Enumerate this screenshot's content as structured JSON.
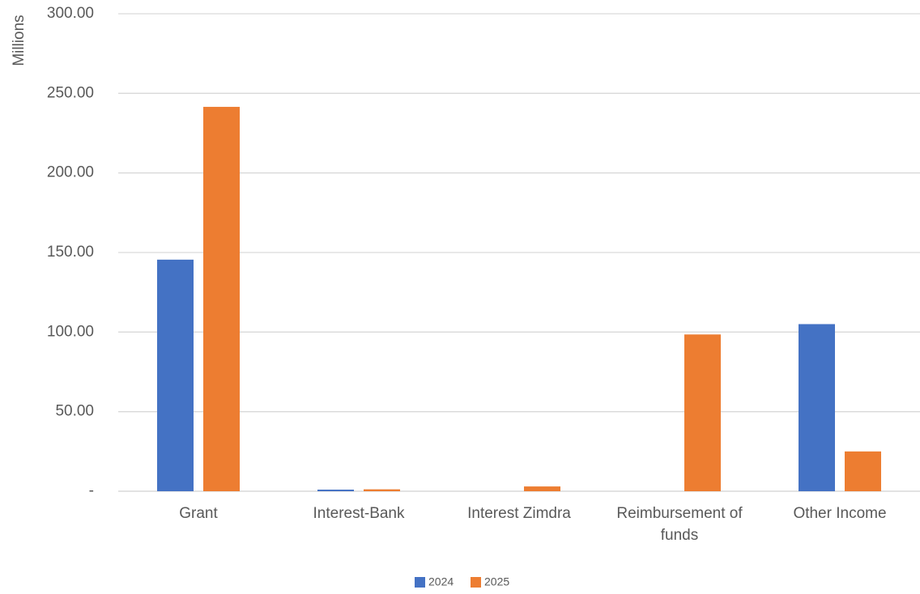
{
  "chart_data": {
    "type": "bar",
    "title": "",
    "xlabel": "",
    "ylabel": "Millions",
    "ylim": [
      0,
      300
    ],
    "yticks": [
      {
        "value": 0,
        "label": "-"
      },
      {
        "value": 50,
        "label": "50.00"
      },
      {
        "value": 100,
        "label": "100.00"
      },
      {
        "value": 150,
        "label": "150.00"
      },
      {
        "value": 200,
        "label": "200.00"
      },
      {
        "value": 250,
        "label": "250.00"
      },
      {
        "value": 300,
        "label": "300.00"
      }
    ],
    "categories": [
      "Grant",
      "Interest-Bank",
      "Interest Zimdra",
      "Reimbursement of funds",
      "Other Income"
    ],
    "category_lines": [
      [
        "Grant"
      ],
      [
        "Interest-Bank"
      ],
      [
        "Interest Zimdra"
      ],
      [
        "Reimbursement of",
        "funds"
      ],
      [
        "Other Income"
      ]
    ],
    "series": [
      {
        "name": "2024",
        "color": "#4472C4",
        "values": [
          145.5,
          1.0,
          0.0,
          0.0,
          105.0
        ]
      },
      {
        "name": "2025",
        "color": "#ED7D31",
        "values": [
          241.5,
          1.2,
          3.0,
          98.5,
          25.0
        ]
      }
    ],
    "grid": true,
    "legend": "bottom"
  }
}
